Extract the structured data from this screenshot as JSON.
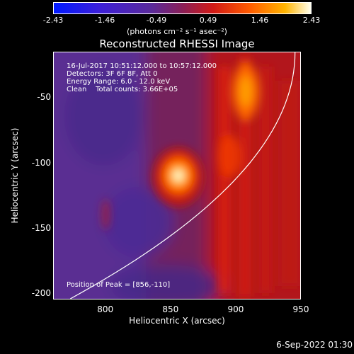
{
  "chart_data": {
    "type": "heatmap",
    "title": "Reconstructed RHESSI Image",
    "xlabel": "Heliocentric X (arcsec)",
    "ylabel": "Heliocentric Y (arcsec)",
    "xlim": [
      760,
      950
    ],
    "ylim": [
      -205,
      -15
    ],
    "x_ticks": [
      "800",
      "850",
      "900",
      "950"
    ],
    "y_ticks": [
      "-50",
      "-100",
      "-150",
      "-200"
    ],
    "colorbar": {
      "units": "(photons cm⁻² s⁻¹ asec⁻²)",
      "ticks": [
        "-2.43",
        "-1.46",
        "-0.49",
        "0.49",
        "1.46",
        "2.43"
      ],
      "range": [
        -2.43,
        2.43
      ]
    },
    "annotations": [
      "16-Jul-2017 10:51:12.000 to 10:57:12.000",
      "Detectors: 3F 6F 8F, Att 0",
      "Energy Range: 6.0 - 12.0 keV",
      "Clean    Total counts: 3.66E+05"
    ],
    "peak_label": "Position of Peak = [856,-110]",
    "peak_position": [
      856,
      -110
    ],
    "peak_value": 2.43,
    "limb_visible": true
  },
  "footer": "6-Sep-2022 01:30"
}
